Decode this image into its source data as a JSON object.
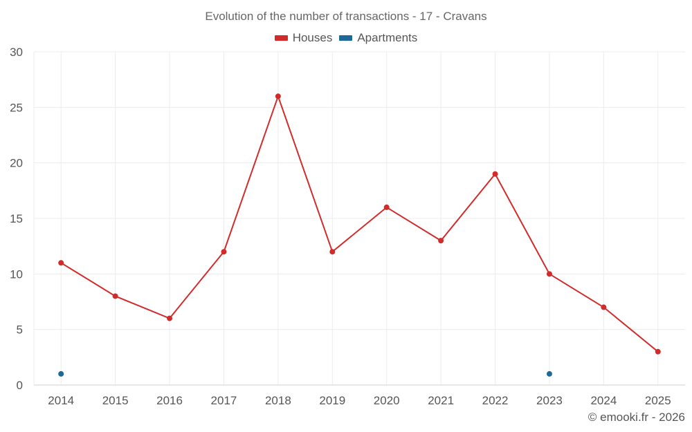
{
  "chart_data": {
    "type": "line",
    "title": "Evolution of the number of transactions - 17 - Cravans",
    "xlabel": "",
    "ylabel": "",
    "categories": [
      "2014",
      "2015",
      "2016",
      "2017",
      "2018",
      "2019",
      "2020",
      "2021",
      "2022",
      "2023",
      "2024",
      "2025"
    ],
    "yticks": [
      0,
      5,
      10,
      15,
      20,
      25,
      30
    ],
    "ylim": [
      0,
      30
    ],
    "grid": true,
    "legend_position": "top-center",
    "series": [
      {
        "name": "Houses",
        "color": "#d32a2a",
        "values": [
          11,
          8,
          6,
          12,
          26,
          12,
          16,
          13,
          19,
          10,
          7,
          3
        ]
      },
      {
        "name": "Apartments",
        "color": "#1d6a9a",
        "values": [
          1,
          null,
          null,
          null,
          null,
          null,
          null,
          null,
          null,
          1,
          null,
          null
        ]
      }
    ]
  },
  "credit": "© emooki.fr - 2026"
}
